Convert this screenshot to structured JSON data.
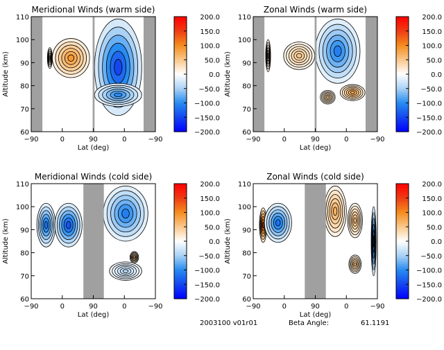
{
  "footer": {
    "date_version": "2003100 v01r01",
    "beta_label": "Beta Angle:",
    "beta_value": "61.1191"
  },
  "colorbar": {
    "ticks": [
      "200.0",
      "150.0",
      "100.0",
      "50.0",
      "0.0",
      "-50.0",
      "-100.0",
      "-150.0",
      "-200.0"
    ],
    "min": -200,
    "max": 200
  },
  "colors": {
    "gap": "#a0a0a0",
    "positive": "#f08c1e",
    "negative": "#1e6ef0"
  },
  "chart_data": [
    {
      "type": "heatmap",
      "title": "Meridional Winds (warm side)",
      "xlabel": "Lat (deg)",
      "ylabel": "Altitude (km)",
      "x_ticks": [
        "-90",
        "0",
        "90",
        "0",
        "-90"
      ],
      "y_ticks": [
        "60",
        "70",
        "80",
        "90",
        "100",
        "110"
      ],
      "ylim": [
        60,
        110
      ],
      "gaps": [
        [
          0,
          0.09
        ],
        [
          0.495,
          0.51
        ],
        [
          0.905,
          1
        ]
      ],
      "blobs": [
        {
          "x": 0.15,
          "y": 92,
          "w": 0.04,
          "h": 9,
          "v": 20
        },
        {
          "x": 0.32,
          "y": 92,
          "w": 0.3,
          "h": 17,
          "v": 90
        },
        {
          "x": 0.7,
          "y": 88,
          "w": 0.38,
          "h": 42,
          "v": -150
        },
        {
          "x": 0.7,
          "y": 76,
          "w": 0.38,
          "h": 10,
          "v": -100
        }
      ]
    },
    {
      "type": "heatmap",
      "title": "Zonal Winds (warm side)",
      "xlabel": "Lat (deg)",
      "ylabel": "Altitude (km)",
      "x_ticks": [
        "-90",
        "0",
        "90",
        "0",
        "-90"
      ],
      "y_ticks": [
        "60",
        "70",
        "80",
        "90",
        "100",
        "110"
      ],
      "ylim": [
        60,
        110
      ],
      "gaps": [
        [
          0,
          0.09
        ],
        [
          0.495,
          0.51
        ],
        [
          0.905,
          1
        ]
      ],
      "blobs": [
        {
          "x": 0.12,
          "y": 93,
          "w": 0.04,
          "h": 14,
          "v": 40
        },
        {
          "x": 0.37,
          "y": 93,
          "w": 0.25,
          "h": 12,
          "v": 50
        },
        {
          "x": 0.68,
          "y": 95,
          "w": 0.36,
          "h": 28,
          "v": -110
        },
        {
          "x": 0.8,
          "y": 77,
          "w": 0.2,
          "h": 7,
          "v": 80
        },
        {
          "x": 0.6,
          "y": 75,
          "w": 0.12,
          "h": 6,
          "v": 50
        }
      ]
    },
    {
      "type": "heatmap",
      "title": "Meridional Winds (cold side)",
      "xlabel": "Lat (deg)",
      "ylabel": "Altitude (km)",
      "x_ticks": [
        "-90",
        "0",
        "90",
        "0",
        "-90"
      ],
      "y_ticks": [
        "60",
        "70",
        "80",
        "90",
        "100",
        "110"
      ],
      "ylim": [
        60,
        110
      ],
      "gaps": [
        [
          0.42,
          0.585
        ]
      ],
      "blobs": [
        {
          "x": 0.12,
          "y": 92,
          "w": 0.15,
          "h": 19,
          "v": -120
        },
        {
          "x": 0.3,
          "y": 92,
          "w": 0.22,
          "h": 19,
          "v": -140
        },
        {
          "x": 0.76,
          "y": 97,
          "w": 0.36,
          "h": 24,
          "v": -110
        },
        {
          "x": 0.83,
          "y": 78,
          "w": 0.07,
          "h": 5,
          "v": 70
        },
        {
          "x": 0.76,
          "y": 72,
          "w": 0.26,
          "h": 8,
          "v": -40
        }
      ]
    },
    {
      "type": "heatmap",
      "title": "Zonal Winds (cold side)",
      "xlabel": "Lat (deg)",
      "ylabel": "Altitude (km)",
      "x_ticks": [
        "-90",
        "0",
        "90",
        "0",
        "-90"
      ],
      "y_ticks": [
        "60",
        "70",
        "80",
        "90",
        "100",
        "110"
      ],
      "ylim": [
        60,
        110
      ],
      "gaps": [
        [
          0.415,
          0.585
        ]
      ],
      "blobs": [
        {
          "x": 0.08,
          "y": 92,
          "w": 0.06,
          "h": 15,
          "v": 140
        },
        {
          "x": 0.2,
          "y": 93,
          "w": 0.22,
          "h": 17,
          "v": -120
        },
        {
          "x": 0.66,
          "y": 98,
          "w": 0.18,
          "h": 22,
          "v": 70
        },
        {
          "x": 0.82,
          "y": 94,
          "w": 0.12,
          "h": 15,
          "v": 60
        },
        {
          "x": 0.82,
          "y": 75,
          "w": 0.1,
          "h": 8,
          "v": 60
        },
        {
          "x": 0.97,
          "y": 85,
          "w": 0.04,
          "h": 30,
          "v": -150
        }
      ]
    }
  ]
}
